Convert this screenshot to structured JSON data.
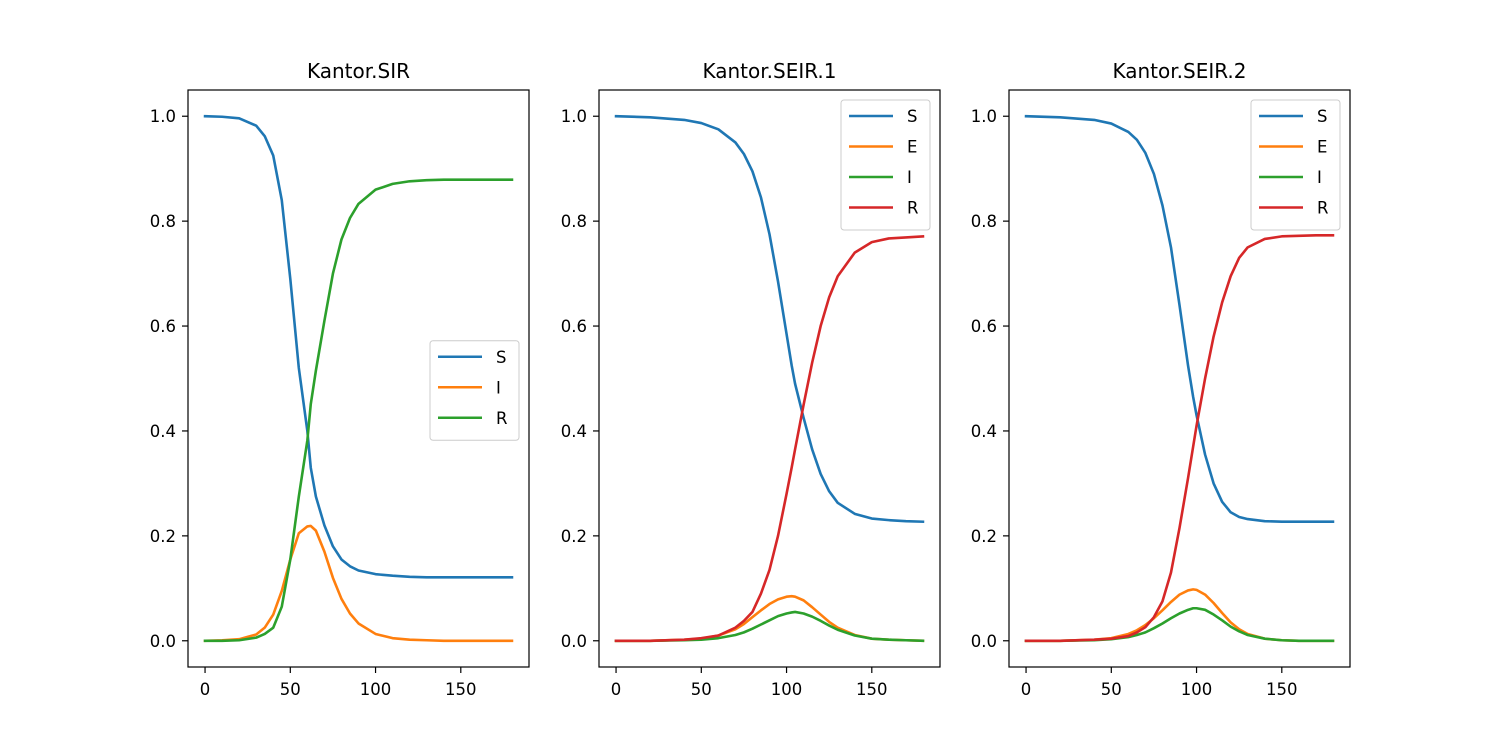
{
  "chart_data": [
    {
      "type": "line",
      "title": "Kantor.SIR",
      "xlim": [
        -10,
        190
      ],
      "ylim": [
        -0.05,
        1.05
      ],
      "xticks": [
        0,
        50,
        100,
        150
      ],
      "yticks": [
        0.0,
        0.2,
        0.4,
        0.6,
        0.8,
        1.0
      ],
      "xtick_labels": [
        "0",
        "50",
        "100",
        "150"
      ],
      "ytick_labels": [
        "0.0",
        "0.2",
        "0.4",
        "0.6",
        "0.8",
        "1.0"
      ],
      "legend_placement": "center-right",
      "grid": false,
      "x": [
        0,
        10,
        20,
        30,
        35,
        40,
        45,
        50,
        55,
        60,
        62,
        65,
        70,
        75,
        80,
        85,
        90,
        100,
        110,
        120,
        130,
        140,
        150,
        160,
        170,
        180
      ],
      "series": [
        {
          "name": "S",
          "color": "#1f77b4",
          "values": [
            1.0,
            0.999,
            0.996,
            0.982,
            0.962,
            0.925,
            0.84,
            0.69,
            0.52,
            0.4,
            0.33,
            0.275,
            0.22,
            0.18,
            0.155,
            0.142,
            0.134,
            0.127,
            0.124,
            0.122,
            0.121,
            0.121,
            0.121,
            0.121,
            0.121,
            0.121
          ]
        },
        {
          "name": "I",
          "color": "#ff7f0e",
          "values": [
            0.0,
            0.001,
            0.003,
            0.012,
            0.025,
            0.05,
            0.095,
            0.155,
            0.205,
            0.218,
            0.219,
            0.21,
            0.17,
            0.12,
            0.08,
            0.052,
            0.033,
            0.013,
            0.005,
            0.002,
            0.001,
            0.0,
            0.0,
            0.0,
            0.0,
            0.0
          ]
        },
        {
          "name": "R",
          "color": "#2ca02c",
          "values": [
            0.0,
            0.0,
            0.001,
            0.006,
            0.013,
            0.025,
            0.065,
            0.155,
            0.275,
            0.382,
            0.451,
            0.515,
            0.61,
            0.7,
            0.765,
            0.806,
            0.833,
            0.86,
            0.871,
            0.876,
            0.878,
            0.879,
            0.879,
            0.879,
            0.879,
            0.879
          ]
        }
      ]
    },
    {
      "type": "line",
      "title": "Kantor.SEIR.1",
      "xlim": [
        -10,
        190
      ],
      "ylim": [
        -0.05,
        1.05
      ],
      "xticks": [
        0,
        50,
        100,
        150
      ],
      "yticks": [
        0.0,
        0.2,
        0.4,
        0.6,
        0.8,
        1.0
      ],
      "xtick_labels": [
        "0",
        "50",
        "100",
        "150"
      ],
      "ytick_labels": [
        "0.0",
        "0.2",
        "0.4",
        "0.6",
        "0.8",
        "1.0"
      ],
      "legend_placement": "upper-right",
      "grid": false,
      "x": [
        0,
        20,
        40,
        50,
        60,
        70,
        75,
        80,
        85,
        90,
        95,
        100,
        103,
        105,
        110,
        115,
        120,
        125,
        130,
        140,
        150,
        160,
        170,
        180
      ],
      "series": [
        {
          "name": "S",
          "color": "#1f77b4",
          "values": [
            1.0,
            0.998,
            0.993,
            0.987,
            0.975,
            0.95,
            0.928,
            0.895,
            0.845,
            0.775,
            0.685,
            0.585,
            0.525,
            0.49,
            0.425,
            0.365,
            0.318,
            0.285,
            0.263,
            0.242,
            0.233,
            0.23,
            0.228,
            0.227
          ]
        },
        {
          "name": "E",
          "color": "#ff7f0e",
          "values": [
            0.0,
            0.0,
            0.002,
            0.004,
            0.01,
            0.022,
            0.032,
            0.045,
            0.058,
            0.07,
            0.079,
            0.084,
            0.085,
            0.084,
            0.077,
            0.064,
            0.05,
            0.036,
            0.025,
            0.011,
            0.004,
            0.002,
            0.001,
            0.0
          ]
        },
        {
          "name": "I",
          "color": "#2ca02c",
          "values": [
            0.0,
            0.0,
            0.001,
            0.002,
            0.005,
            0.011,
            0.016,
            0.023,
            0.031,
            0.039,
            0.047,
            0.052,
            0.054,
            0.055,
            0.052,
            0.046,
            0.038,
            0.029,
            0.021,
            0.01,
            0.004,
            0.002,
            0.001,
            0.0
          ]
        },
        {
          "name": "R",
          "color": "#d62728",
          "values": [
            0.0,
            0.0,
            0.002,
            0.005,
            0.01,
            0.025,
            0.038,
            0.055,
            0.09,
            0.135,
            0.2,
            0.28,
            0.33,
            0.365,
            0.45,
            0.53,
            0.6,
            0.655,
            0.695,
            0.74,
            0.76,
            0.767,
            0.769,
            0.771
          ]
        }
      ]
    },
    {
      "type": "line",
      "title": "Kantor.SEIR.2",
      "xlim": [
        -10,
        190
      ],
      "ylim": [
        -0.05,
        1.05
      ],
      "xticks": [
        0,
        50,
        100,
        150
      ],
      "yticks": [
        0.0,
        0.2,
        0.4,
        0.6,
        0.8,
        1.0
      ],
      "xtick_labels": [
        "0",
        "50",
        "100",
        "150"
      ],
      "ytick_labels": [
        "0.0",
        "0.2",
        "0.4",
        "0.6",
        "0.8",
        "1.0"
      ],
      "legend_placement": "upper-right",
      "grid": false,
      "x": [
        0,
        20,
        40,
        50,
        60,
        65,
        70,
        75,
        80,
        85,
        90,
        95,
        98,
        100,
        105,
        110,
        115,
        120,
        125,
        130,
        140,
        150,
        160,
        170,
        180
      ],
      "series": [
        {
          "name": "S",
          "color": "#1f77b4",
          "values": [
            1.0,
            0.998,
            0.993,
            0.986,
            0.97,
            0.955,
            0.93,
            0.89,
            0.83,
            0.75,
            0.64,
            0.525,
            0.465,
            0.43,
            0.355,
            0.3,
            0.265,
            0.245,
            0.236,
            0.232,
            0.228,
            0.227,
            0.227,
            0.227,
            0.227
          ]
        },
        {
          "name": "E",
          "color": "#ff7f0e",
          "values": [
            0.0,
            0.0,
            0.002,
            0.005,
            0.013,
            0.02,
            0.03,
            0.043,
            0.058,
            0.074,
            0.088,
            0.096,
            0.098,
            0.097,
            0.088,
            0.072,
            0.053,
            0.035,
            0.022,
            0.013,
            0.004,
            0.001,
            0.0,
            0.0,
            0.0
          ]
        },
        {
          "name": "I",
          "color": "#2ca02c",
          "values": [
            0.0,
            0.0,
            0.001,
            0.003,
            0.007,
            0.011,
            0.016,
            0.024,
            0.033,
            0.043,
            0.052,
            0.059,
            0.062,
            0.062,
            0.059,
            0.05,
            0.039,
            0.027,
            0.018,
            0.011,
            0.004,
            0.001,
            0.0,
            0.0,
            0.0
          ]
        },
        {
          "name": "R",
          "color": "#d62728",
          "values": [
            0.0,
            0.0,
            0.002,
            0.004,
            0.009,
            0.016,
            0.026,
            0.045,
            0.075,
            0.13,
            0.215,
            0.31,
            0.37,
            0.41,
            0.5,
            0.58,
            0.645,
            0.695,
            0.73,
            0.75,
            0.766,
            0.771,
            0.772,
            0.773,
            0.773
          ]
        }
      ]
    }
  ]
}
